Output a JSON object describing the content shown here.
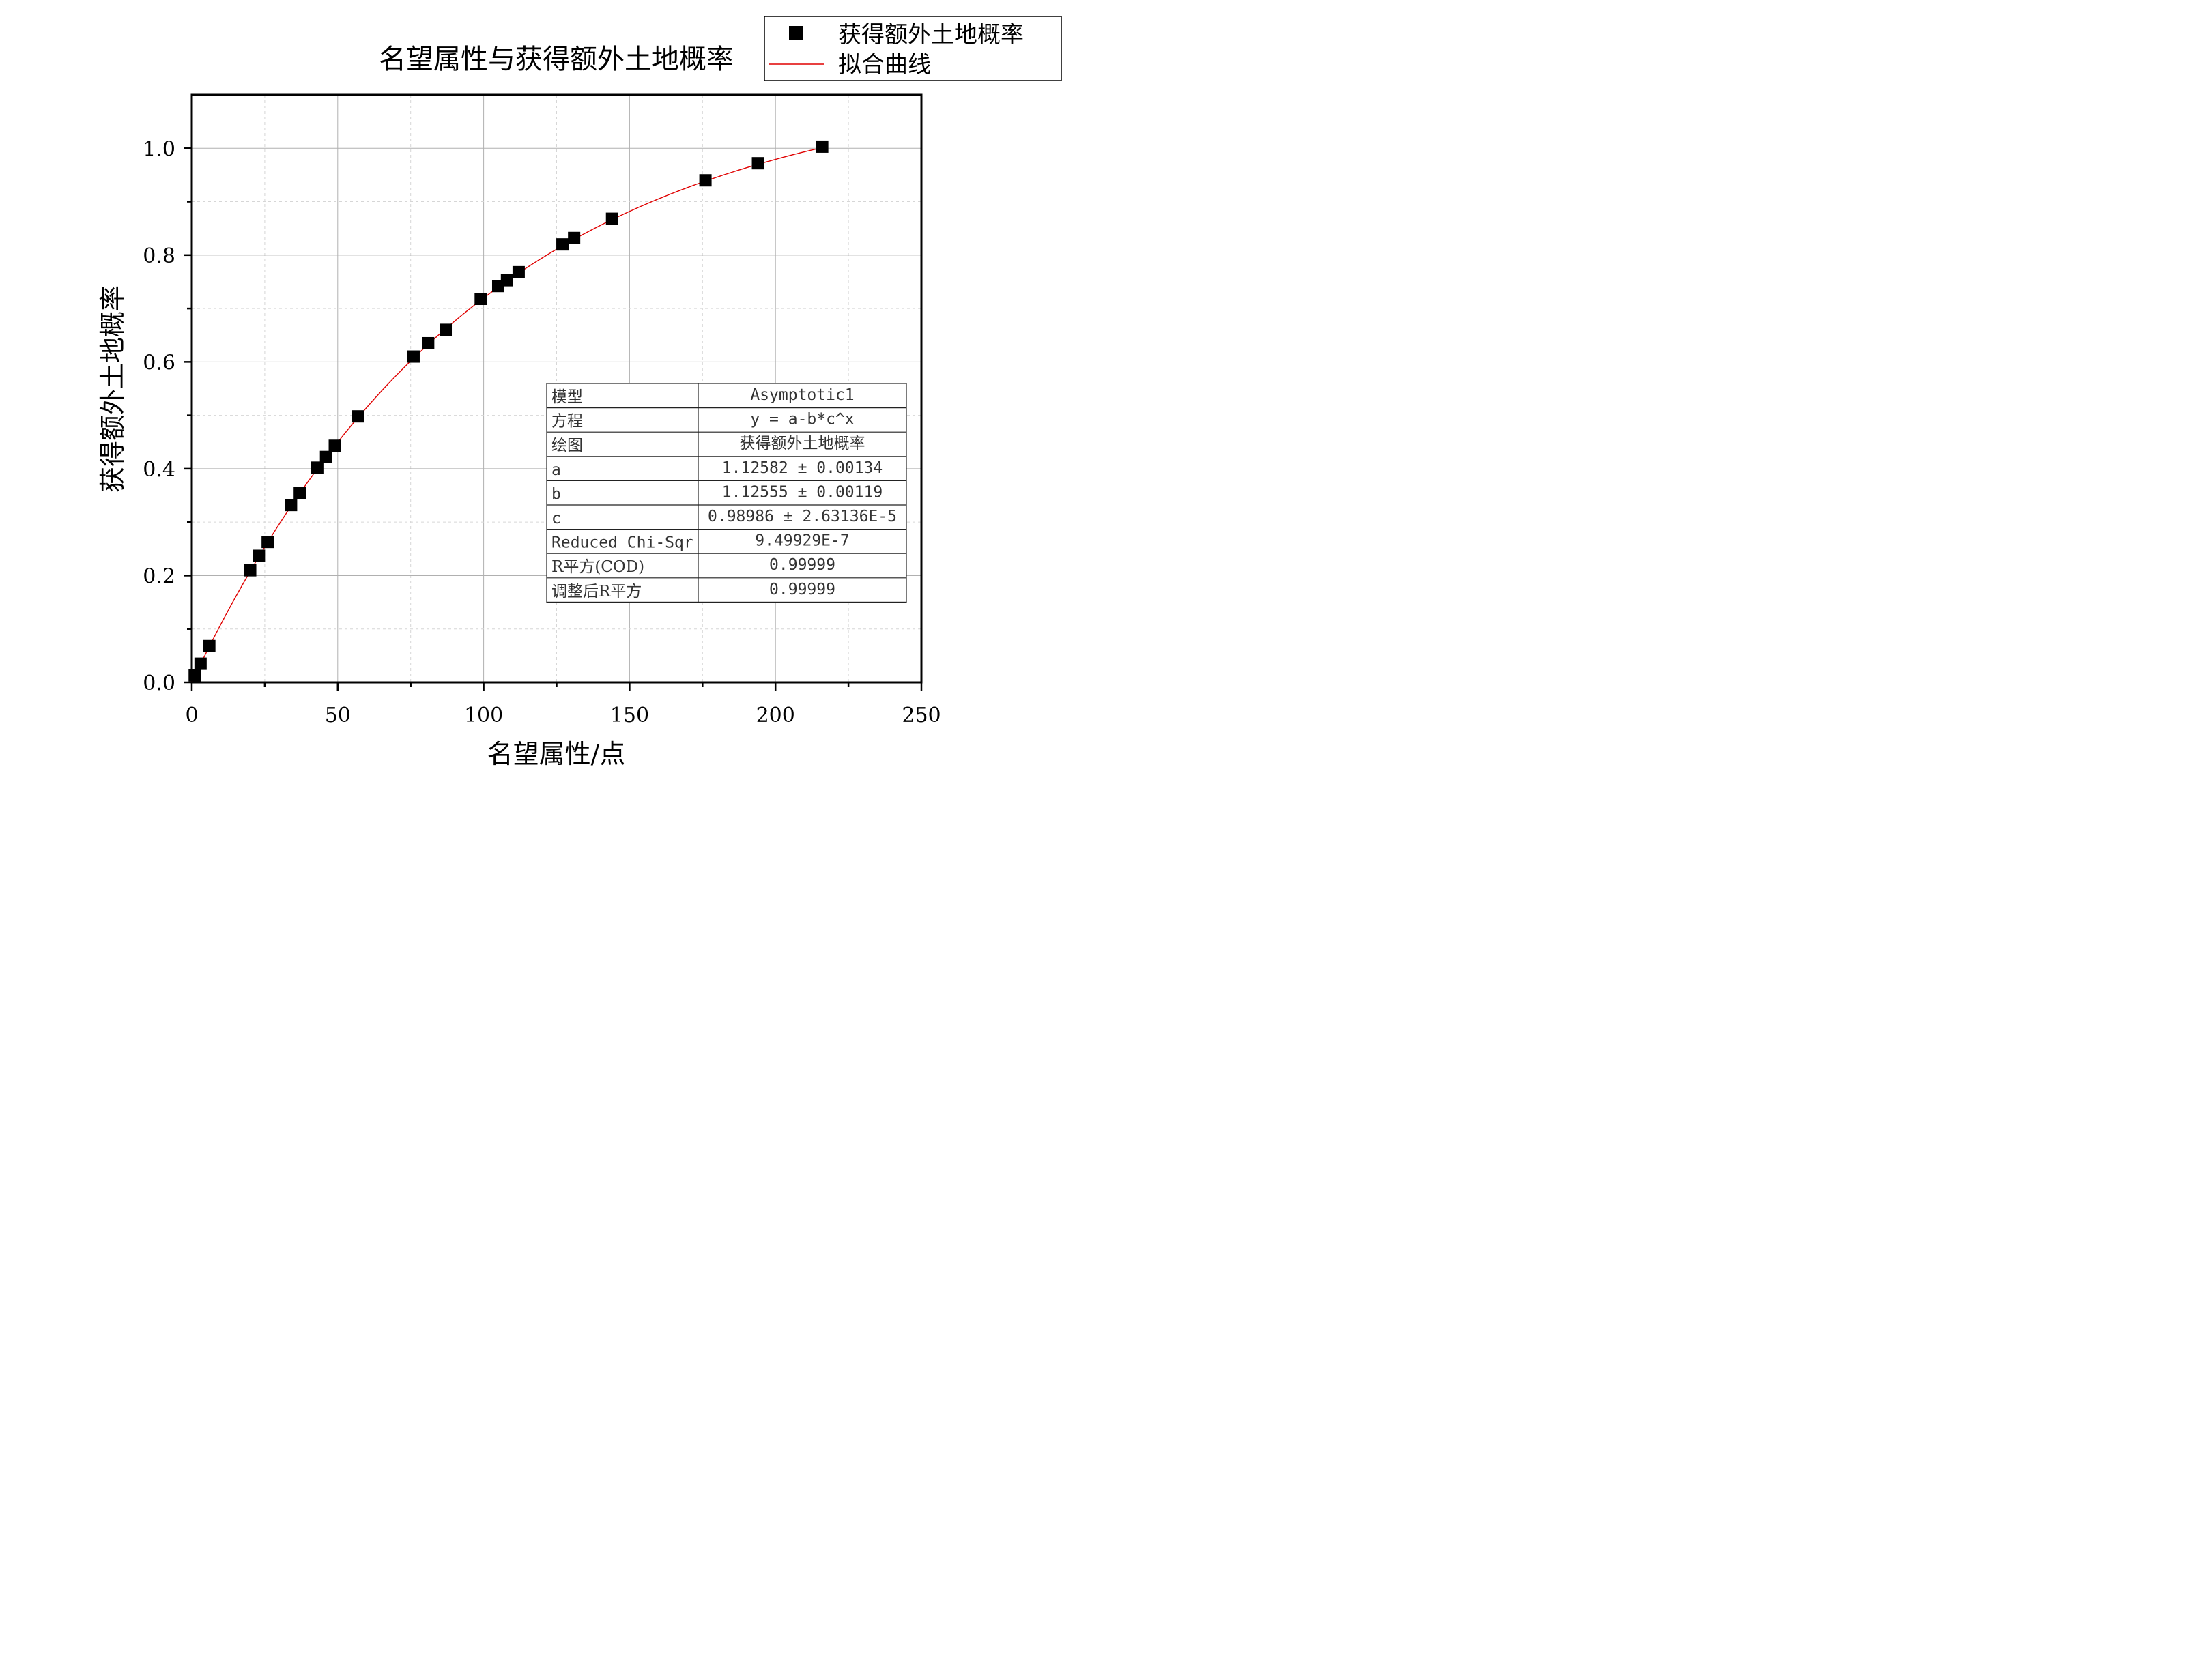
{
  "chart_data": {
    "type": "scatter",
    "title": "名望属性与获得额外土地概率",
    "xlabel": "名望属性/点",
    "ylabel": "获得额外土地概率",
    "xlim": [
      0,
      250
    ],
    "ylim": [
      0,
      1.1
    ],
    "x_ticks": [
      "0",
      "50",
      "100",
      "150",
      "200",
      "250"
    ],
    "y_ticks": [
      "0.0",
      "0.2",
      "0.4",
      "0.6",
      "0.8",
      "1.0"
    ],
    "grid": true,
    "legend_position": "top-right",
    "series": [
      {
        "name": "获得额外土地概率",
        "marker": "square",
        "color": "#000000",
        "points": [
          [
            1,
            0.013
          ],
          [
            3,
            0.035
          ],
          [
            6,
            0.068
          ],
          [
            20,
            0.21
          ],
          [
            23,
            0.237
          ],
          [
            26,
            0.263
          ],
          [
            34,
            0.332
          ],
          [
            37,
            0.355
          ],
          [
            43,
            0.402
          ],
          [
            46,
            0.422
          ],
          [
            49,
            0.443
          ],
          [
            57,
            0.498
          ],
          [
            76,
            0.61
          ],
          [
            81,
            0.635
          ],
          [
            87,
            0.66
          ],
          [
            99,
            0.718
          ],
          [
            105,
            0.742
          ],
          [
            108,
            0.753
          ],
          [
            112,
            0.768
          ],
          [
            127,
            0.82
          ],
          [
            131,
            0.832
          ],
          [
            144,
            0.868
          ],
          [
            176,
            0.94
          ],
          [
            194,
            0.972
          ],
          [
            216,
            1.003
          ]
        ]
      },
      {
        "name": "拟合曲线",
        "type": "line",
        "color": "#ff0000",
        "model": {
          "a": 1.12582,
          "b": 1.12555,
          "c": 0.98986
        },
        "x_range": [
          0,
          216
        ]
      }
    ]
  },
  "fit_table": [
    {
      "label": "模型",
      "value": "Asymptotic1"
    },
    {
      "label": "方程",
      "value": "y = a-b*c^x"
    },
    {
      "label": "绘图",
      "value": "获得额外土地概率"
    },
    {
      "label": "a",
      "value": "1.12582 ± 0.00134"
    },
    {
      "label": "b",
      "value": "1.12555 ± 0.00119"
    },
    {
      "label": "c",
      "value": "0.98986 ± 2.63136E-5"
    },
    {
      "label": "Reduced Chi-Sqr",
      "value": "9.49929E-7"
    },
    {
      "label": "R平方(COD)",
      "value": "0.99999"
    },
    {
      "label": "调整后R平方",
      "value": "0.99999"
    }
  ]
}
